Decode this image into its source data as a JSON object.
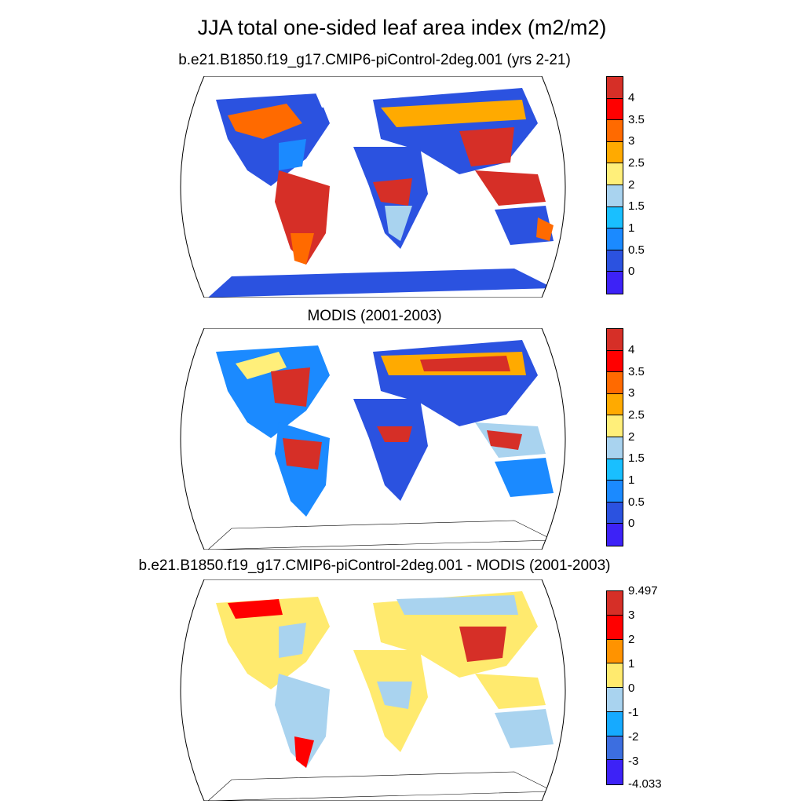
{
  "title": "JJA total one-sided leaf area index (m2/m2)",
  "panels": [
    {
      "id": "model",
      "title": "b.e21.B1850.f19_g17.CMIP6-piControl-2deg.001 (yrs 2-21)",
      "colorbar": {
        "colors": [
          "#d62f27",
          "#ff0000",
          "#ff6a00",
          "#ffaa00",
          "#ffef7a",
          "#a9d3ef",
          "#19bfff",
          "#1b8aff",
          "#2b52e0",
          "#3d22f7"
        ],
        "labels": [
          "4",
          "3.5",
          "3",
          "2.5",
          "2",
          "1.5",
          "1",
          "0.5",
          "0"
        ]
      }
    },
    {
      "id": "obs",
      "title": "MODIS (2001-2003)",
      "colorbar": {
        "colors": [
          "#d62f27",
          "#ff0000",
          "#ff6a00",
          "#ffaa00",
          "#ffef7a",
          "#a9d3ef",
          "#19bfff",
          "#1b8aff",
          "#2b52e0",
          "#3d22f7"
        ],
        "labels": [
          "4",
          "3.5",
          "3",
          "2.5",
          "2",
          "1.5",
          "1",
          "0.5",
          "0"
        ]
      }
    },
    {
      "id": "diff",
      "title": "b.e21.B1850.f19_g17.CMIP6-piControl-2deg.001 - MODIS (2001-2003)",
      "colorbar": {
        "colors": [
          "#d62f27",
          "#ff0000",
          "#ff9300",
          "#ffea6e",
          "#a9d3ef",
          "#16aaff",
          "#3c6ee0",
          "#3d22f7"
        ],
        "labels": [
          "9.497",
          "3",
          "2",
          "1",
          "0",
          "-1",
          "-2",
          "-3",
          "-4.033"
        ]
      }
    }
  ],
  "map_colors": {
    "high": "#d62f27",
    "mid_high": "#ff6a00",
    "mid": "#ffef7a",
    "low": "#a9d3ef",
    "very_low": "#2b52e0",
    "diff_pos": "#ffea6e",
    "diff_neg": "#a9d3ef"
  }
}
